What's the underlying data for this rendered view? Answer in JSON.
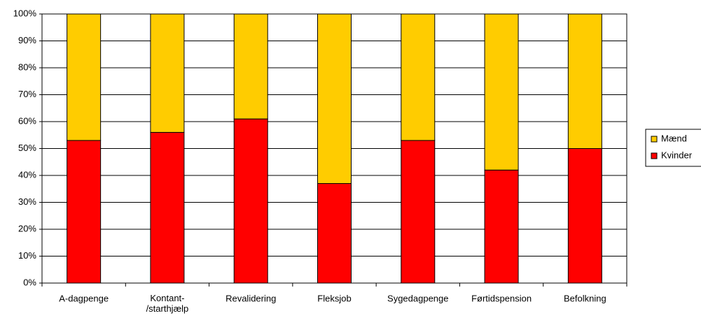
{
  "chart_data": {
    "type": "stacked_bar",
    "categories": [
      "A-dagpenge",
      "Kontant-\n/starthjælp",
      "Revalidering",
      "Fleksjob",
      "Sygedagpenge",
      "Førtidspension",
      "Befolkning"
    ],
    "series": [
      {
        "name": "Kvinder",
        "color": "#ff0000",
        "values": [
          53,
          56,
          61,
          37,
          53,
          42,
          50
        ]
      },
      {
        "name": "Mænd",
        "color": "#ffcc00",
        "values": [
          47,
          44,
          39,
          63,
          47,
          58,
          50
        ]
      }
    ],
    "ylim": [
      0,
      100
    ],
    "yticks": [
      {
        "value": 0,
        "label": "0%"
      },
      {
        "value": 10,
        "label": "10%"
      },
      {
        "value": 20,
        "label": "20%"
      },
      {
        "value": 30,
        "label": "30%"
      },
      {
        "value": 40,
        "label": "40%"
      },
      {
        "value": 50,
        "label": "50%"
      },
      {
        "value": 60,
        "label": "60%"
      },
      {
        "value": 70,
        "label": "70%"
      },
      {
        "value": 80,
        "label": "80%"
      },
      {
        "value": 90,
        "label": "90%"
      },
      {
        "value": 100,
        "label": "100%"
      }
    ],
    "grid": true,
    "legend": "right"
  }
}
